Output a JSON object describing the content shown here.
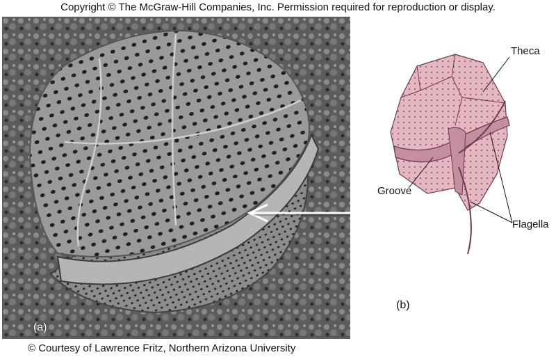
{
  "header": {
    "copyright": "Copyright © The McGraw-Hill Companies, Inc. Permission required for reproduction or display."
  },
  "photo": {
    "panel_label": "(a)",
    "credit": "© Courtesy of Lawrence Fritz, Northern Arizona University"
  },
  "diagram": {
    "panel_label": "(b)",
    "labels": {
      "theca": "Theca",
      "groove": "Groove",
      "flagella": "Flagella"
    }
  },
  "colors": {
    "theca_fill": "#e3b8c3",
    "theca_shadow": "#c68f9f",
    "pore": "#a8677a",
    "outline": "#6b3a47"
  }
}
